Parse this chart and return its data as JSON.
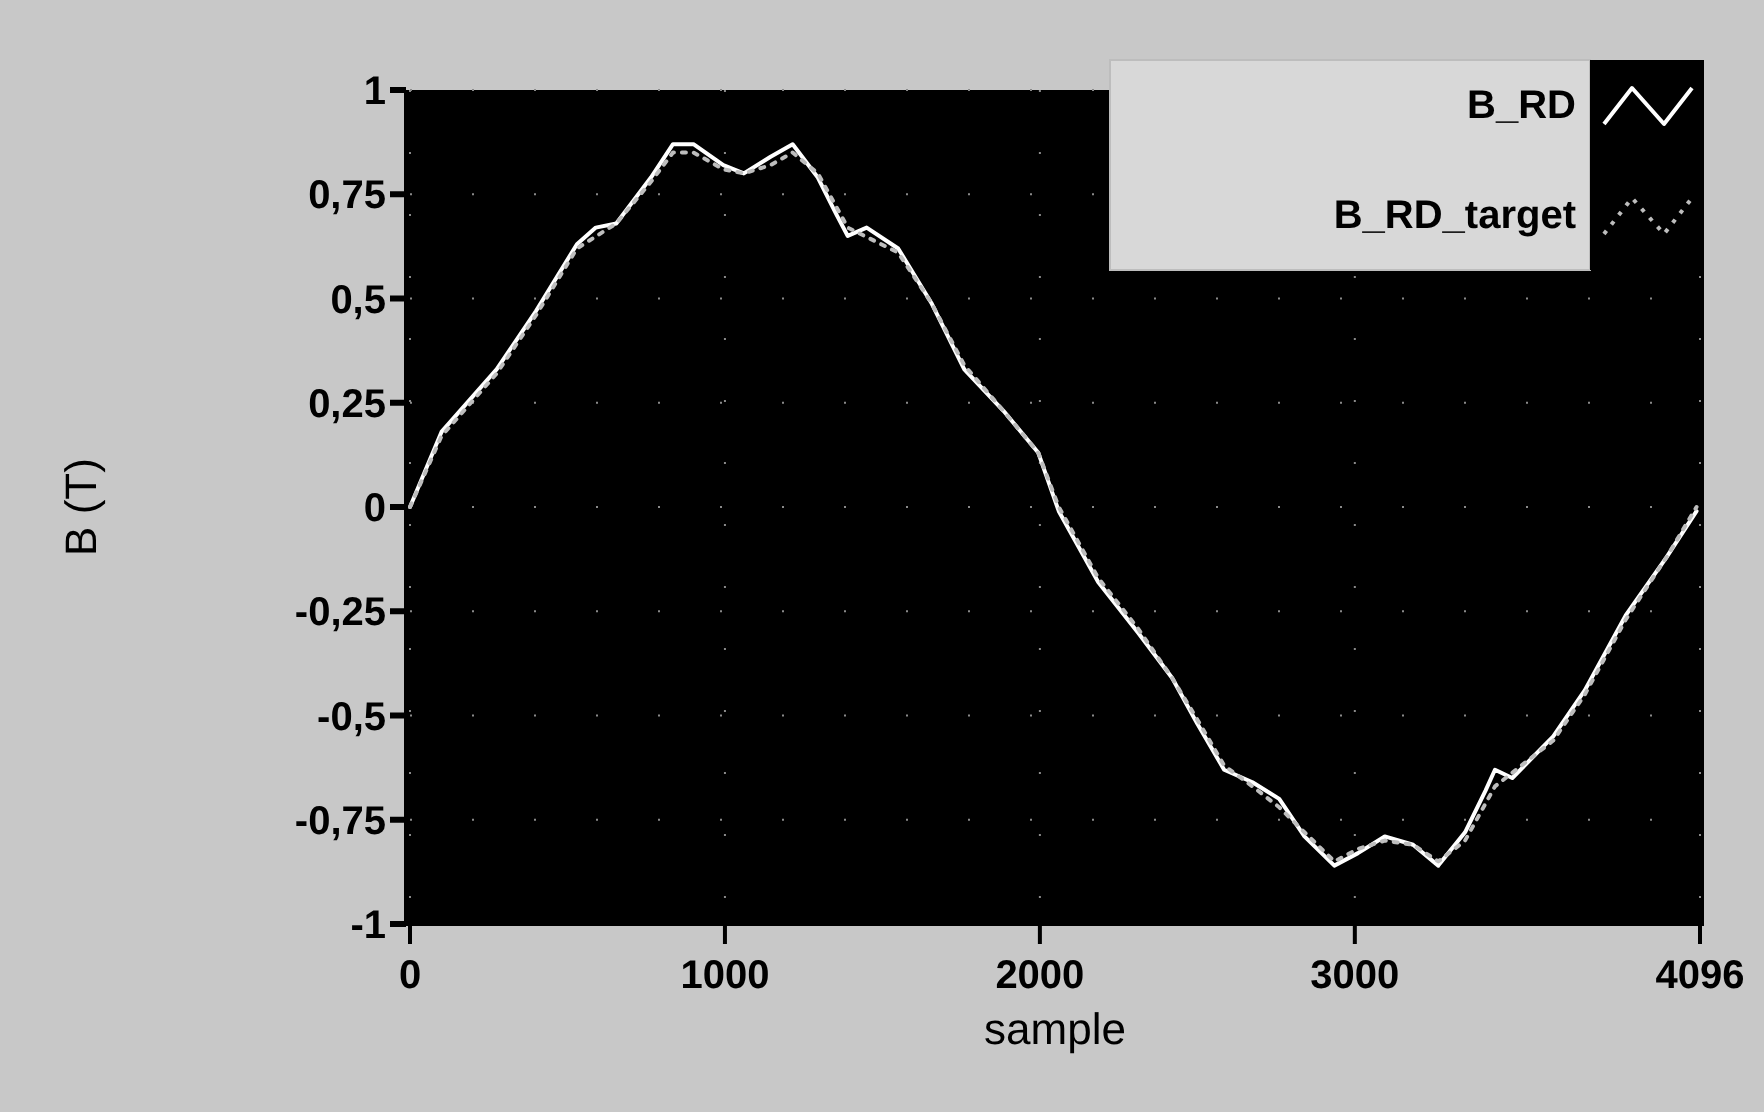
{
  "chart_data": {
    "type": "line",
    "xlabel": "sample",
    "ylabel": "B (T)",
    "xlim": [
      0,
      4096
    ],
    "ylim": [
      -1,
      1
    ],
    "xticks": [
      0,
      1000,
      2000,
      3000,
      4096
    ],
    "yticks": [
      1,
      {
        "value": 0.75,
        "label": "0,75"
      },
      {
        "value": 0.5,
        "label": "0,5"
      },
      {
        "value": 0.25,
        "label": "0,25"
      },
      0,
      {
        "value": -0.25,
        "label": "-0,25"
      },
      {
        "value": -0.5,
        "label": "-0,5"
      },
      {
        "value": -0.75,
        "label": "-0,75"
      },
      -1
    ],
    "grid": true,
    "legend": "top right",
    "series": [
      {
        "name": "B_RD",
        "color": "#ffffff",
        "line_style": "solid",
        "x": [
          0,
          100,
          275,
          400,
          530,
          590,
          655,
          765,
          835,
          900,
          995,
          1060,
          1145,
          1215,
          1295,
          1355,
          1390,
          1450,
          1550,
          1655,
          1760,
          1885,
          1995,
          2060,
          2185,
          2310,
          2420,
          2500,
          2585,
          2675,
          2760,
          2840,
          2935,
          3010,
          3095,
          3185,
          3265,
          3350,
          3415,
          3445,
          3500,
          3630,
          3730,
          3860,
          3990,
          4085
        ],
        "values": [
          0,
          0.18,
          0.33,
          0.47,
          0.63,
          0.67,
          0.68,
          0.79,
          0.87,
          0.87,
          0.82,
          0.8,
          0.84,
          0.87,
          0.79,
          0.7,
          0.65,
          0.67,
          0.62,
          0.49,
          0.33,
          0.23,
          0.13,
          -0.01,
          -0.18,
          -0.3,
          -0.41,
          -0.52,
          -0.63,
          -0.66,
          -0.7,
          -0.79,
          -0.86,
          -0.83,
          -0.79,
          -0.81,
          -0.86,
          -0.78,
          -0.68,
          -0.63,
          -0.65,
          -0.55,
          -0.44,
          -0.26,
          -0.12,
          -0.01
        ]
      },
      {
        "name": "B_RD_target",
        "color": "#bdbdbd",
        "line_style": "dotted",
        "x": [
          0,
          100,
          275,
          400,
          530,
          655,
          765,
          835,
          900,
          995,
          1060,
          1145,
          1215,
          1295,
          1390,
          1550,
          1655,
          1760,
          1885,
          1995,
          2060,
          2185,
          2310,
          2420,
          2500,
          2585,
          2675,
          2760,
          2840,
          2935,
          3010,
          3095,
          3185,
          3265,
          3350,
          3445,
          3630,
          3730,
          3860,
          3990,
          4085
        ],
        "values": [
          0,
          0.17,
          0.32,
          0.46,
          0.62,
          0.68,
          0.78,
          0.85,
          0.85,
          0.81,
          0.8,
          0.82,
          0.85,
          0.8,
          0.67,
          0.61,
          0.49,
          0.34,
          0.23,
          0.13,
          0,
          -0.17,
          -0.29,
          -0.41,
          -0.51,
          -0.62,
          -0.67,
          -0.72,
          -0.78,
          -0.85,
          -0.82,
          -0.8,
          -0.81,
          -0.85,
          -0.8,
          -0.67,
          -0.56,
          -0.45,
          -0.27,
          -0.12,
          0
        ]
      }
    ]
  }
}
